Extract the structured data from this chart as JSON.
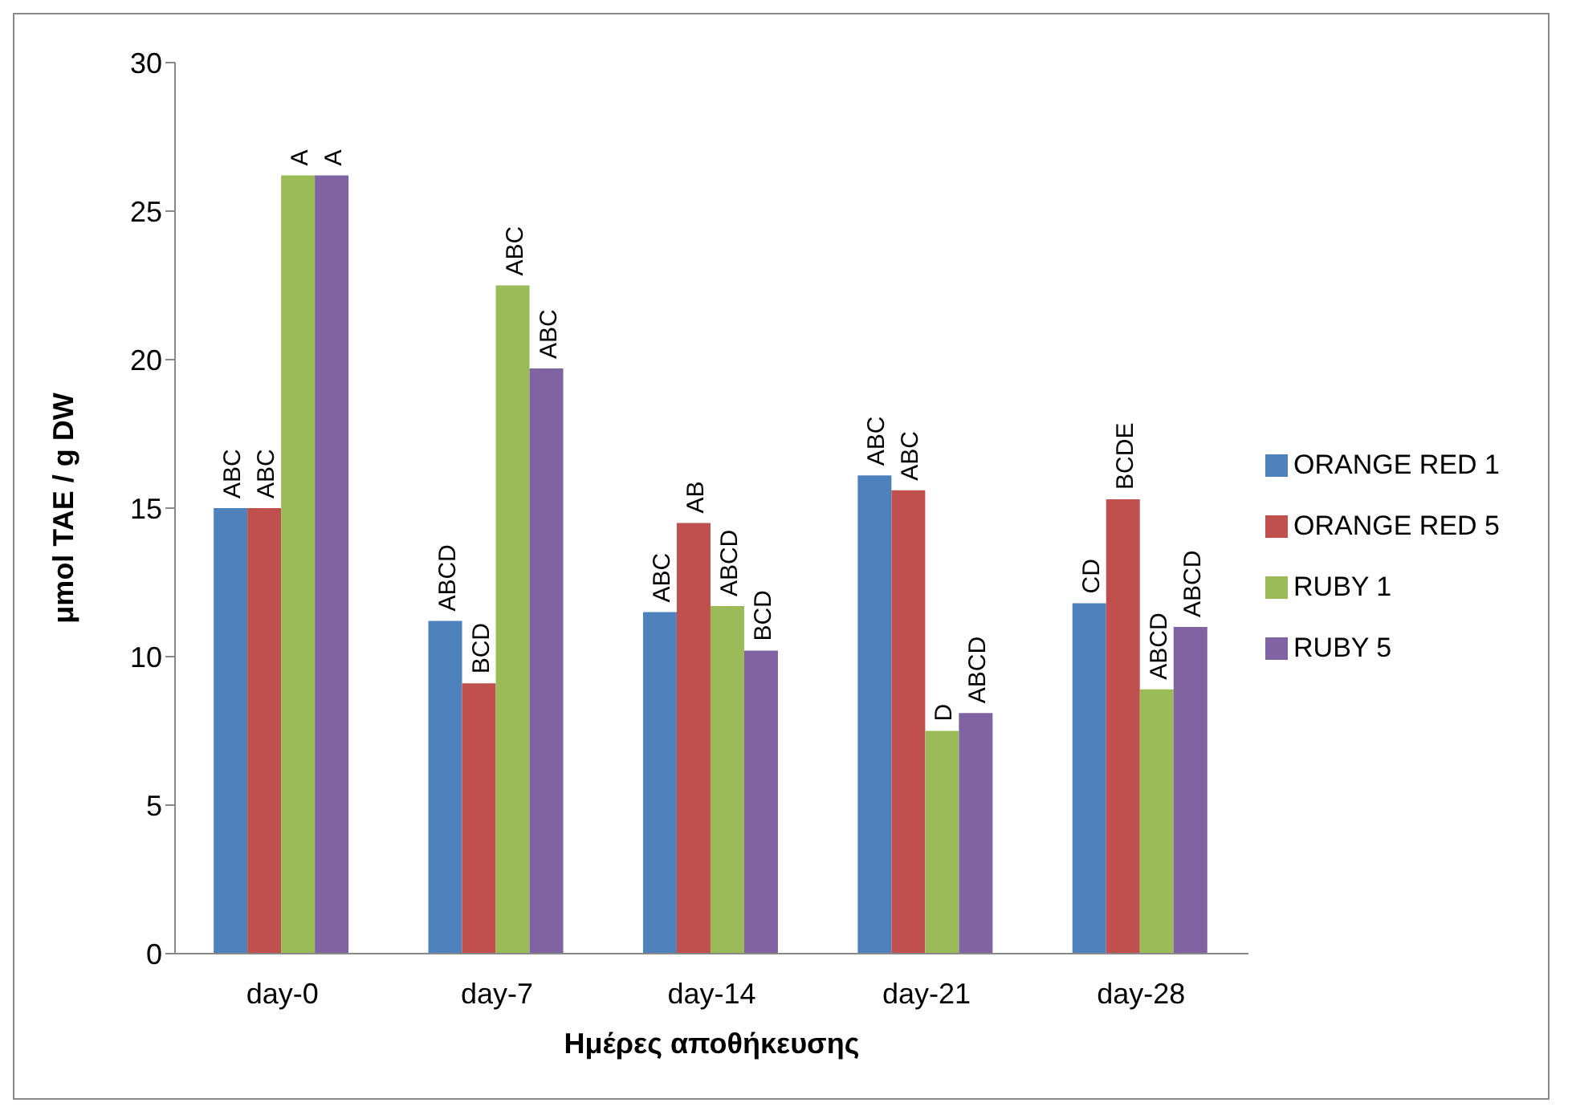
{
  "chart_data": {
    "type": "bar",
    "xlabel": "Ημέρες αποθήκευσης",
    "ylabel": "μmol  TAE / g DW",
    "categories": [
      "day-0",
      "day-7",
      "day-14",
      "day-21",
      "day-28"
    ],
    "ylim": [
      0,
      30
    ],
    "yticks": [
      0,
      5,
      10,
      15,
      20,
      25,
      30
    ],
    "grid": false,
    "legend": "right",
    "series": [
      {
        "name": "ORANGE RED 1",
        "color": "#4f81bd",
        "values": [
          15.0,
          11.2,
          11.5,
          16.1,
          11.8
        ],
        "value_labels": [
          "ABC",
          "ABCD",
          "ABC",
          "ABC",
          "CD"
        ]
      },
      {
        "name": "ORANGE RED 5",
        "color": "#c0504d",
        "values": [
          15.0,
          9.1,
          14.5,
          15.6,
          15.3
        ],
        "value_labels": [
          "ABC",
          "BCD",
          "AB",
          "ABC",
          "BCDE"
        ]
      },
      {
        "name": "RUBY 1",
        "color": "#9bbb59",
        "values": [
          26.2,
          22.5,
          11.7,
          7.5,
          8.9
        ],
        "value_labels": [
          "A",
          "ABC",
          "ABCD",
          "D",
          "ABCD"
        ]
      },
      {
        "name": "RUBY 5",
        "color": "#8064a2",
        "values": [
          26.2,
          19.7,
          10.2,
          8.1,
          11.0
        ],
        "value_labels": [
          "A",
          "ABC",
          "BCD",
          "ABCD",
          "ABCD"
        ]
      }
    ]
  }
}
